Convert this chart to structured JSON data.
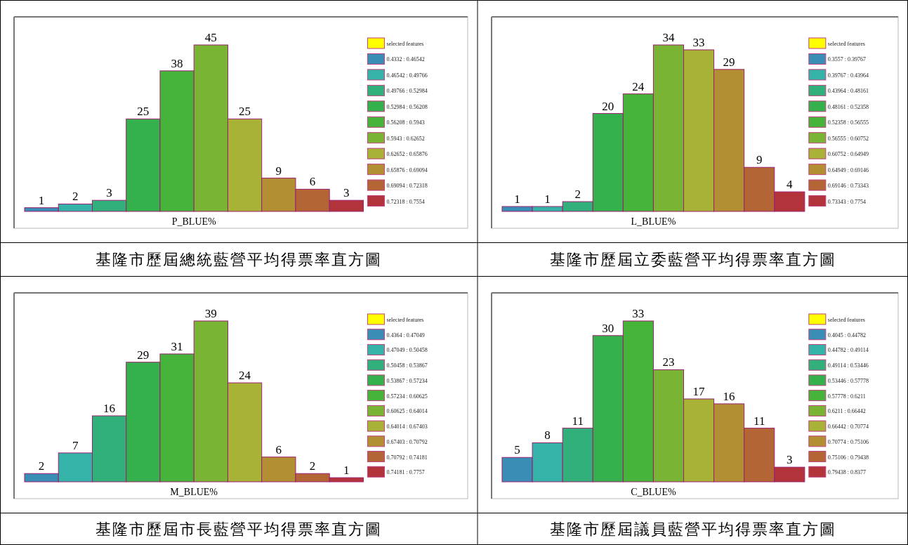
{
  "chart_data": [
    {
      "type": "bar",
      "title": "基隆市歷屆總統藍營平均得票率直方圖",
      "xlabel": "P_BLUE%",
      "categories": [
        null,
        null,
        null,
        null,
        null,
        null,
        null,
        null,
        null,
        null
      ],
      "data_labels": true,
      "values": [
        1,
        2,
        3,
        25,
        38,
        45,
        25,
        9,
        6,
        3
      ],
      "colors": [
        "#3a8db5",
        "#36b3a9",
        "#32b07c",
        "#34b04c",
        "#46b43a",
        "#79b434",
        "#a8b236",
        "#b38f34",
        "#b36536",
        "#b3333a"
      ],
      "annotations": [
        "selected features",
        "0.4332 : 0.46542",
        "0.46542 : 0.49766",
        "0.49766 : 0.52984",
        "0.52984 : 0.56208",
        "0.56208 : 0.5943",
        "0.5943 : 0.62652",
        "0.62652 : 0.65876",
        "0.65876 : 0.69094",
        "0.69094 : 0.72318",
        "0.72318 : 0.7554"
      ]
    },
    {
      "type": "bar",
      "title": "基隆市歷屆立委藍營平均得票率直方圖",
      "xlabel": "L_BLUE%",
      "categories": [
        null,
        null,
        null,
        null,
        null,
        null,
        null,
        null,
        null,
        null
      ],
      "data_labels": true,
      "values": [
        1,
        1,
        2,
        20,
        24,
        34,
        33,
        29,
        9,
        4
      ],
      "colors": [
        "#3a8db5",
        "#36b3a9",
        "#32b07c",
        "#34b04c",
        "#46b43a",
        "#79b434",
        "#a8b236",
        "#b38f34",
        "#b36536",
        "#b3333a"
      ],
      "annotations": [
        "selected features",
        "0.3557 : 0.39767",
        "0.39767 : 0.43964",
        "0.43964 : 0.48161",
        "0.48161 : 0.52358",
        "0.52358 : 0.56555",
        "0.56555 : 0.60752",
        "0.60752 : 0.64949",
        "0.64949 : 0.69146",
        "0.69146 : 0.73343",
        "0.73343 : 0.7754"
      ]
    },
    {
      "type": "bar",
      "title": "基隆市歷屆市長藍營平均得票率直方圖",
      "xlabel": "M_BLUE%",
      "categories": [
        null,
        null,
        null,
        null,
        null,
        null,
        null,
        null,
        null,
        null
      ],
      "data_labels": true,
      "values": [
        2,
        7,
        16,
        29,
        31,
        39,
        24,
        6,
        2,
        1
      ],
      "colors": [
        "#3a8db5",
        "#36b3a9",
        "#32b07c",
        "#34b04c",
        "#46b43a",
        "#79b434",
        "#a8b236",
        "#b38f34",
        "#b36536",
        "#b3333a"
      ],
      "annotations": [
        "selected features",
        "0.4364 : 0.47049",
        "0.47049 : 0.50458",
        "0.50458 : 0.53867",
        "0.53867 : 0.57234",
        "0.57234 : 0.60625",
        "0.60625 : 0.64014",
        "0.64014 : 0.67403",
        "0.67403 : 0.70792",
        "0.70792 : 0.74181",
        "0.74181 : 0.7757"
      ]
    },
    {
      "type": "bar",
      "title": "基隆市歷屆議員藍營平均得票率直方圖",
      "xlabel": "C_BLUE%",
      "categories": [
        null,
        null,
        null,
        null,
        null,
        null,
        null,
        null,
        null,
        null
      ],
      "data_labels": true,
      "values": [
        5,
        8,
        11,
        30,
        33,
        23,
        17,
        16,
        11,
        3
      ],
      "colors": [
        "#3a8db5",
        "#36b3a9",
        "#32b07c",
        "#34b04c",
        "#46b43a",
        "#79b434",
        "#a8b236",
        "#b38f34",
        "#b36536",
        "#b3333a"
      ],
      "annotations": [
        "selected features",
        "0.4045 : 0.44782",
        "0.44782 : 0.49114",
        "0.49114 : 0.53446",
        "0.53446 : 0.57778",
        "0.57778 : 0.6211",
        "0.6211 : 0.66442",
        "0.66442 : 0.70774",
        "0.70774 : 0.75106",
        "0.75106 : 0.79438",
        "0.79438 : 0.8377"
      ]
    }
  ]
}
